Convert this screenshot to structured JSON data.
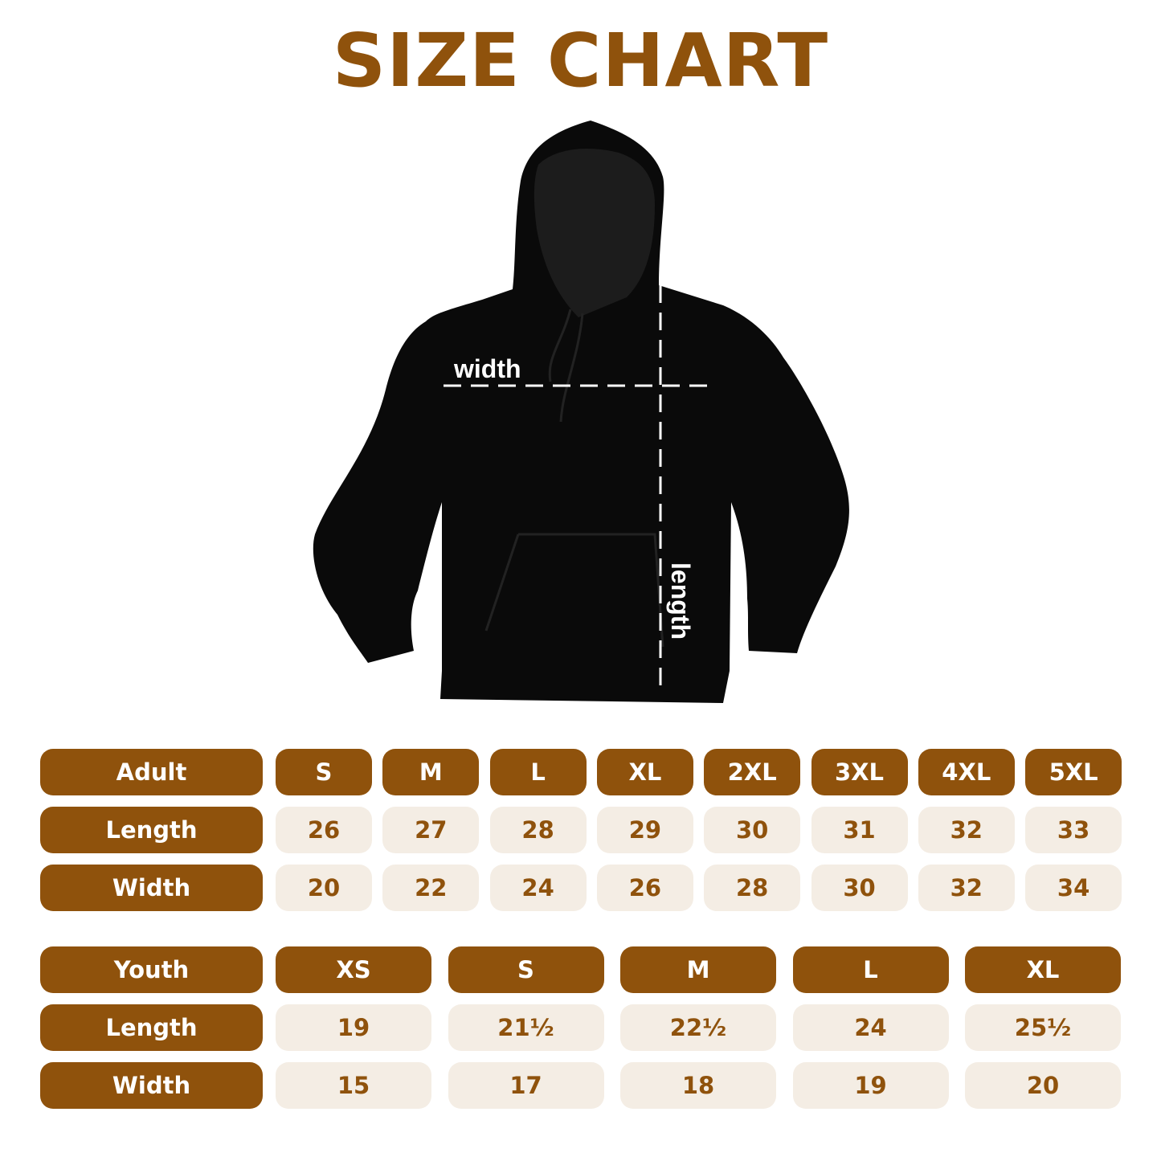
{
  "title": "SIZE CHART",
  "colors": {
    "brown": "#8f520c",
    "cream": "#f4ede4",
    "garment": "#0a0a0a"
  },
  "diagram": {
    "width_label": "width",
    "length_label": "length",
    "garment_icon": "hoodie-icon"
  },
  "adult": {
    "header": "Adult",
    "sizes": [
      "S",
      "M",
      "L",
      "XL",
      "2XL",
      "3XL",
      "4XL",
      "5XL"
    ],
    "rows": [
      {
        "label": "Length",
        "values": [
          "26",
          "27",
          "28",
          "29",
          "30",
          "31",
          "32",
          "33"
        ]
      },
      {
        "label": "Width",
        "values": [
          "20",
          "22",
          "24",
          "26",
          "28",
          "30",
          "32",
          "34"
        ]
      }
    ]
  },
  "youth": {
    "header": "Youth",
    "sizes": [
      "XS",
      "S",
      "M",
      "L",
      "XL"
    ],
    "rows": [
      {
        "label": "Length",
        "values": [
          "19",
          "21½",
          "22½",
          "24",
          "25½"
        ]
      },
      {
        "label": "Width",
        "values": [
          "15",
          "17",
          "18",
          "19",
          "20"
        ]
      }
    ]
  }
}
